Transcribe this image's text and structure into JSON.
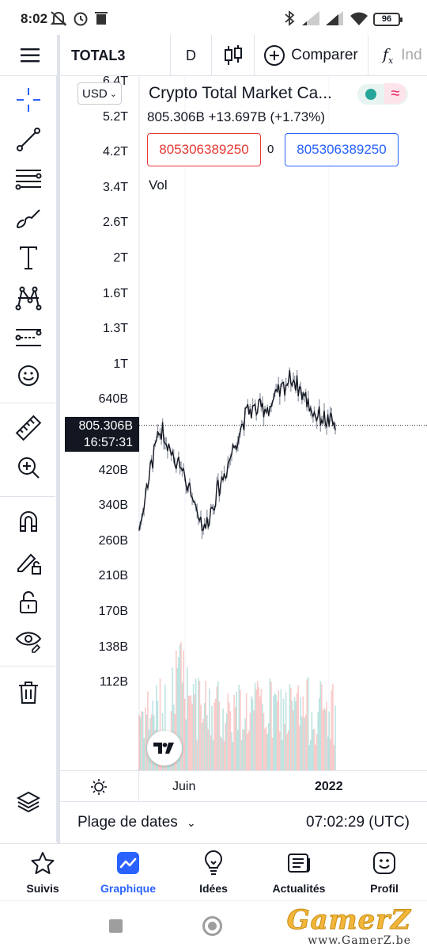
{
  "status_bar": {
    "time": "8:02",
    "battery": "96"
  },
  "toolbar": {
    "symbol": "TOTAL3",
    "timeframe": "D",
    "compare_label": "Comparer",
    "indicators_label": "Ind"
  },
  "left_tools": [
    "crosshair-icon",
    "trend-line-icon",
    "fib-icon",
    "brush-icon",
    "text-icon",
    "pattern-icon",
    "forecast-icon",
    "emoji-icon",
    "ruler-icon",
    "zoom-in-icon",
    "magnet-icon",
    "lock-drawing-icon",
    "lock-icon",
    "eye-icon",
    "trash-icon",
    "layers-icon"
  ],
  "chart": {
    "currency": "USD",
    "title": "Crypto Total Market Ca...",
    "last_value": "805.306B",
    "change": "+13.697B",
    "change_pct": "(+1.73%)",
    "sell_value": "805306389250",
    "spread": "0",
    "buy_value": "805306389250",
    "volume_label": "Vol",
    "price_tag_value": "805.306B",
    "price_tag_timer": "16:57:31",
    "price_axis": [
      "6.4T",
      "5.2T",
      "4.2T",
      "3.4T",
      "2.6T",
      "2T",
      "1.6T",
      "1.3T",
      "1T",
      "640B",
      "520B",
      "420B",
      "340B",
      "260B",
      "210B",
      "170B",
      "138B",
      "112B"
    ],
    "time_axis": [
      "Juin",
      "2022"
    ],
    "colors": {
      "up": "#26a69a",
      "down": "#ef5350",
      "accent": "#2962ff"
    }
  },
  "chart_data": {
    "type": "line",
    "title": "Crypto Total Market Ca...",
    "xlabel": "",
    "ylabel": "",
    "scale": "log",
    "x": [
      "2021-04",
      "2021-05",
      "2021-06",
      "2021-07",
      "2021-08",
      "2021-09",
      "2021-10",
      "2021-11",
      "2021-12",
      "2022-01"
    ],
    "series": [
      {
        "name": "TOTAL3",
        "values": [
          430,
          790,
          600,
          430,
          620,
          880,
          900,
          1080,
          870,
          805
        ]
      }
    ],
    "ylim": [
      "112B",
      "6.4T"
    ]
  },
  "footer": {
    "date_range": "Plage de dates",
    "clock": "07:02:29 (UTC)"
  },
  "bottom_nav": [
    {
      "label": "Suivis",
      "icon": "star-icon"
    },
    {
      "label": "Graphique",
      "icon": "chart-icon"
    },
    {
      "label": "Idées",
      "icon": "lightbulb-icon"
    },
    {
      "label": "Actualités",
      "icon": "news-icon"
    },
    {
      "label": "Profil",
      "icon": "smiley-icon"
    }
  ],
  "watermark": {
    "brand": "GamerZ",
    "url": "www.GamerZ.be"
  }
}
